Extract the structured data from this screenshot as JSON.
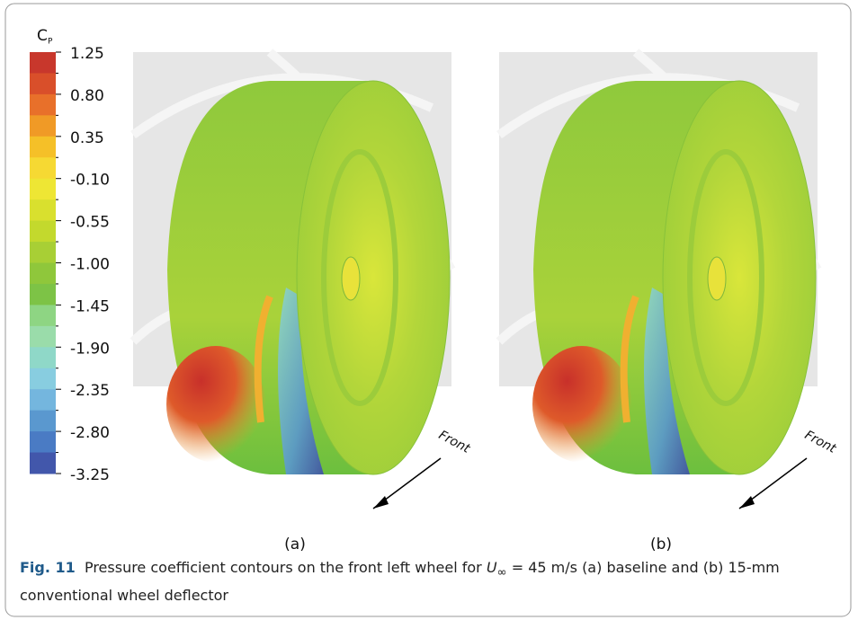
{
  "colorbar": {
    "label": "C",
    "label_sub": "P",
    "ticks": [
      "1.25",
      "0.80",
      "0.35",
      "-0.10",
      "-0.55",
      "-1.00",
      "-1.45",
      "-1.90",
      "-2.35",
      "-2.80",
      "-3.25"
    ]
  },
  "panels": [
    {
      "label": "(a)",
      "direction": "Front"
    },
    {
      "label": "(b)",
      "direction": "Front"
    }
  ],
  "caption": {
    "label": "Fig. 11",
    "text_before": "Pressure coefficient contours on the front left wheel for ",
    "symbol": "U",
    "symbol_sub": "∞",
    "text_after": " = 45 m/s (a) baseline and (b) 15-mm conventional wheel deflector"
  }
}
